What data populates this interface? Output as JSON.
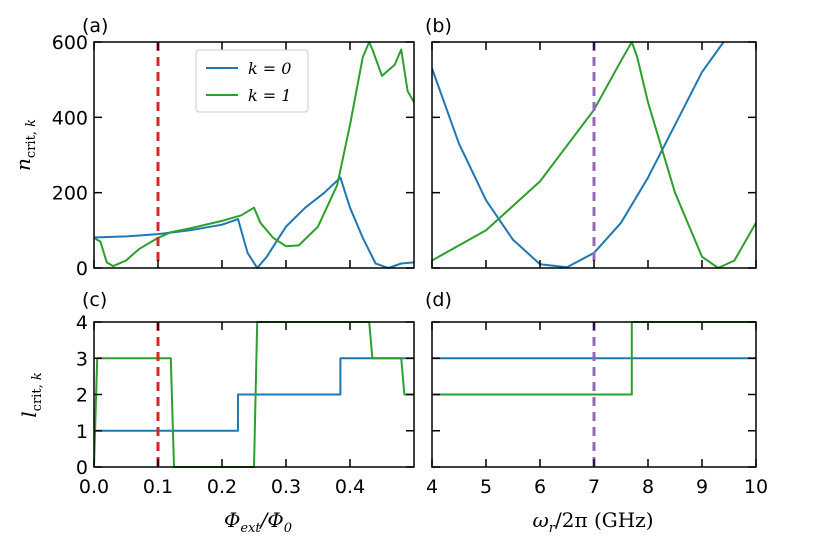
{
  "figure": {
    "colors": {
      "k0": "#1f77b4",
      "k1": "#2ca02c",
      "vline_a": "#d62728",
      "vline_b": "#9467bd"
    }
  },
  "chart_data": [
    {
      "id": "a",
      "panel_label": "(a)",
      "type": "line",
      "xlim": [
        0.0,
        0.5
      ],
      "ylim": [
        0,
        600
      ],
      "yticks": [
        0,
        200,
        400,
        600
      ],
      "ylabel": "n_crit,k",
      "vline": {
        "x": 0.1,
        "color": "#d62728"
      },
      "legend": {
        "placement": "top-center",
        "entries": [
          "k = 0",
          "k = 1"
        ]
      },
      "series": [
        {
          "name": "k = 0",
          "color": "#1f77b4",
          "x": [
            0,
            0.05,
            0.1,
            0.15,
            0.2,
            0.222,
            0.225,
            0.24,
            0.255,
            0.27,
            0.3,
            0.33,
            0.36,
            0.385,
            0.4,
            0.42,
            0.44,
            0.46,
            0.48,
            0.5
          ],
          "y": [
            81,
            84,
            90,
            100,
            115,
            128,
            130,
            40,
            0,
            30,
            110,
            160,
            200,
            240,
            160,
            80,
            12,
            0,
            12,
            15
          ]
        },
        {
          "name": "k = 1",
          "color": "#2ca02c",
          "x": [
            0,
            0.01,
            0.02,
            0.03,
            0.05,
            0.07,
            0.1,
            0.12,
            0.15,
            0.2,
            0.23,
            0.25,
            0.26,
            0.28,
            0.3,
            0.32,
            0.35,
            0.38,
            0.4,
            0.42,
            0.43,
            0.435,
            0.45,
            0.47,
            0.48,
            0.49,
            0.5
          ],
          "y": [
            80,
            70,
            15,
            5,
            20,
            50,
            80,
            95,
            105,
            125,
            140,
            160,
            120,
            80,
            58,
            60,
            110,
            220,
            380,
            560,
            600,
            580,
            510,
            540,
            580,
            470,
            440
          ]
        }
      ]
    },
    {
      "id": "b",
      "panel_label": "(b)",
      "type": "line",
      "xlim": [
        4,
        10
      ],
      "ylim": [
        0,
        600
      ],
      "yticks": [
        0,
        200,
        400,
        600
      ],
      "vline": {
        "x": 7,
        "color": "#9467bd"
      },
      "series": [
        {
          "name": "k = 0",
          "color": "#1f77b4",
          "x": [
            4,
            4.5,
            5,
            5.5,
            6,
            6.5,
            7,
            7.5,
            8,
            8.5,
            9,
            9.4
          ],
          "y": [
            530,
            330,
            180,
            75,
            10,
            2,
            40,
            120,
            240,
            380,
            520,
            600
          ]
        },
        {
          "name": "k = 1",
          "color": "#2ca02c",
          "x": [
            4,
            5,
            6,
            7,
            7.5,
            7.7,
            7.8,
            8,
            8.5,
            9,
            9.3,
            9.6,
            10
          ],
          "y": [
            20,
            100,
            230,
            420,
            550,
            600,
            560,
            440,
            200,
            30,
            0,
            20,
            120
          ]
        }
      ]
    },
    {
      "id": "c",
      "panel_label": "(c)",
      "type": "step",
      "xlim": [
        0.0,
        0.5
      ],
      "ylim": [
        0,
        4
      ],
      "xticks": [
        0.0,
        0.1,
        0.2,
        0.3,
        0.4
      ],
      "xtick_labels": [
        "0.0",
        "0.1",
        "0.2",
        "0.3",
        "0.4"
      ],
      "yticks": [
        0,
        1,
        2,
        3,
        4
      ],
      "xlabel": "Φext/Φ0",
      "ylabel": "l_crit,k",
      "vline": {
        "x": 0.1,
        "color": "#d62728"
      },
      "series": [
        {
          "name": "k = 0",
          "color": "#1f77b4",
          "x": [
            0,
            0.225,
            0.225,
            0.385,
            0.385,
            0.5
          ],
          "y": [
            1,
            1,
            2,
            2,
            3,
            3
          ]
        },
        {
          "name": "k = 1",
          "color": "#2ca02c",
          "x": [
            0,
            0.005,
            0.01,
            0.12,
            0.125,
            0.25,
            0.255,
            0.43,
            0.435,
            0.48,
            0.485,
            0.5
          ],
          "y": [
            0,
            3,
            3,
            3,
            0,
            0,
            4,
            4,
            3,
            3,
            2,
            2
          ]
        }
      ]
    },
    {
      "id": "d",
      "panel_label": "(d)",
      "type": "step",
      "xlim": [
        4,
        10
      ],
      "ylim": [
        0,
        4
      ],
      "xticks": [
        4,
        5,
        6,
        7,
        8,
        9,
        10
      ],
      "xtick_labels": [
        "4",
        "5",
        "6",
        "7",
        "8",
        "9",
        "10"
      ],
      "yticks": [
        0,
        1,
        2,
        3,
        4
      ],
      "xlabel": "ωr/2π (GHz)",
      "vline": {
        "x": 7,
        "color": "#9467bd"
      },
      "series": [
        {
          "name": "k = 0",
          "color": "#1f77b4",
          "x": [
            4,
            10
          ],
          "y": [
            3,
            3
          ]
        },
        {
          "name": "k = 1",
          "color": "#2ca02c",
          "x": [
            4,
            7.7,
            7.7,
            10
          ],
          "y": [
            2,
            2,
            4,
            4
          ]
        }
      ]
    }
  ]
}
